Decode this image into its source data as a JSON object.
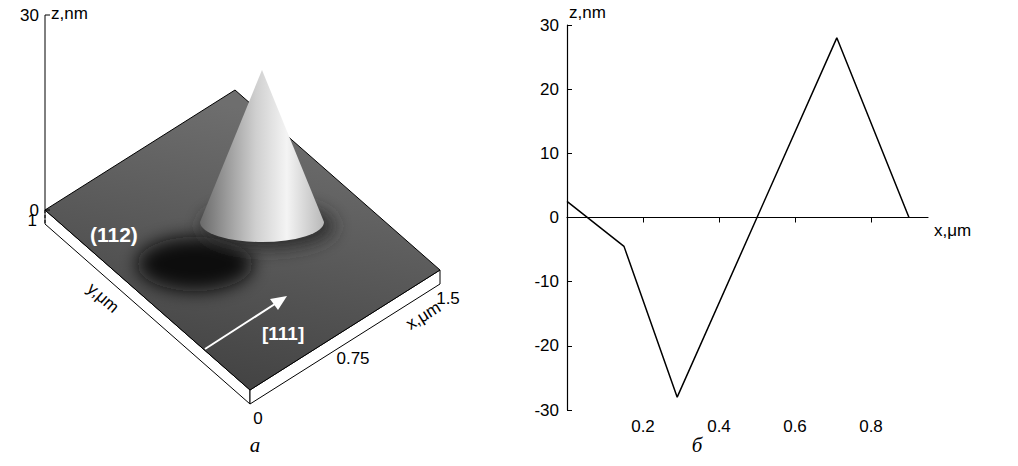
{
  "chart_data": {
    "type": "line",
    "panel_label": "б",
    "xlabel": "x,μm",
    "ylabel": "z,nm",
    "x": [
      0,
      0.15,
      0.29,
      0.71,
      0.9
    ],
    "values": [
      2.5,
      -4.5,
      -28,
      28,
      0
    ],
    "color": "#000000",
    "xlim": [
      0,
      0.95
    ],
    "xticks": [
      0.2,
      0.4,
      0.6,
      0.8
    ],
    "ylim": [
      -30,
      30
    ],
    "yticks": [
      -30,
      -20,
      -10,
      0,
      10,
      20,
      30
    ],
    "grid": false
  },
  "afm_image": {
    "type": "surface",
    "panel_label": "a",
    "xlabel": "x,μm",
    "ylabel": "y,μm",
    "zlabel": "z,nm",
    "xlim": [
      0,
      1.5
    ],
    "ylim": [
      0,
      1
    ],
    "zlim": [
      0,
      30
    ],
    "xticks": [
      0,
      0.75,
      1.5
    ],
    "yticks": [
      1
    ],
    "zticks": [
      0,
      30
    ],
    "plane_label": "(112)",
    "direction_label": "[111]"
  }
}
